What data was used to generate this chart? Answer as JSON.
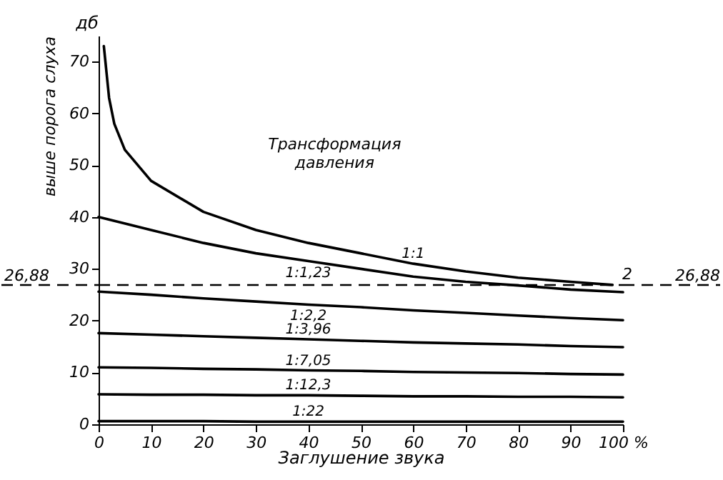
{
  "chart_data": {
    "type": "line",
    "xlabel": "Заглушение звука",
    "ylabel": "выше порога слуха",
    "xlim": [
      0,
      100
    ],
    "ylim": [
      0,
      75
    ],
    "xticks": [
      0,
      10,
      20,
      30,
      40,
      50,
      60,
      70,
      80,
      90,
      {
        "value": 100,
        "label": "100 %"
      }
    ],
    "yticks": [
      0,
      10,
      20,
      30,
      40,
      50,
      60,
      70
    ],
    "grid": false,
    "legend": false,
    "marker": "none",
    "line_style": "solid",
    "ref_lines": [
      {
        "axis": "y",
        "value": 26.88,
        "label": "26,88",
        "line_style": "dashed",
        "color": "#000000"
      }
    ],
    "annotations": [
      "дб",
      "Трансформация давления",
      {
        "text": "2",
        "x": 100,
        "y": 26.88
      }
    ],
    "series": [
      {
        "name": "1:1",
        "color": "#000000",
        "x": [
          1,
          2,
          3,
          5,
          10,
          20,
          30,
          40,
          50,
          60,
          70,
          80,
          90,
          98
        ],
        "values": [
          73,
          63,
          58,
          53,
          47,
          41,
          37.5,
          35,
          33,
          31,
          29.5,
          28.3,
          27.5,
          26.9
        ]
      },
      {
        "name": "1:1,23",
        "color": "#000000",
        "x": [
          0,
          10,
          20,
          30,
          40,
          50,
          60,
          70,
          80,
          90,
          100
        ],
        "values": [
          40,
          37.5,
          35,
          33,
          31.5,
          30,
          28.5,
          27.5,
          26.8,
          26,
          25.5
        ]
      },
      {
        "name": "1:2,2",
        "color": "#000000",
        "x": [
          0,
          10,
          20,
          30,
          40,
          50,
          60,
          70,
          80,
          90,
          100
        ],
        "values": [
          25.6,
          25,
          24.3,
          23.7,
          23.1,
          22.6,
          22,
          21.5,
          21,
          20.5,
          20.1
        ]
      },
      {
        "name": "1:3,96",
        "color": "#000000",
        "x": [
          0,
          10,
          20,
          30,
          40,
          50,
          60,
          70,
          80,
          90,
          100
        ],
        "values": [
          17.6,
          17.3,
          17,
          16.7,
          16.4,
          16.1,
          15.8,
          15.6,
          15.4,
          15.1,
          14.9
        ]
      },
      {
        "name": "1:7,05",
        "color": "#000000",
        "x": [
          0,
          10,
          20,
          30,
          40,
          50,
          60,
          70,
          80,
          90,
          100
        ],
        "values": [
          11,
          10.9,
          10.7,
          10.6,
          10.4,
          10.3,
          10.1,
          10,
          9.9,
          9.7,
          9.6
        ]
      },
      {
        "name": "1:12,3",
        "color": "#000000",
        "x": [
          0,
          10,
          20,
          30,
          40,
          50,
          60,
          70,
          80,
          90,
          100
        ],
        "values": [
          5.8,
          5.7,
          5.7,
          5.6,
          5.6,
          5.5,
          5.4,
          5.4,
          5.3,
          5.3,
          5.2
        ]
      },
      {
        "name": "1:22",
        "color": "#000000",
        "x": [
          0,
          10,
          20,
          30,
          40,
          50,
          60,
          70,
          80,
          90,
          100
        ],
        "values": [
          0.6,
          0.6,
          0.6,
          0.5,
          0.5,
          0.5,
          0.5,
          0.5,
          0.5,
          0.5,
          0.5
        ]
      }
    ]
  }
}
